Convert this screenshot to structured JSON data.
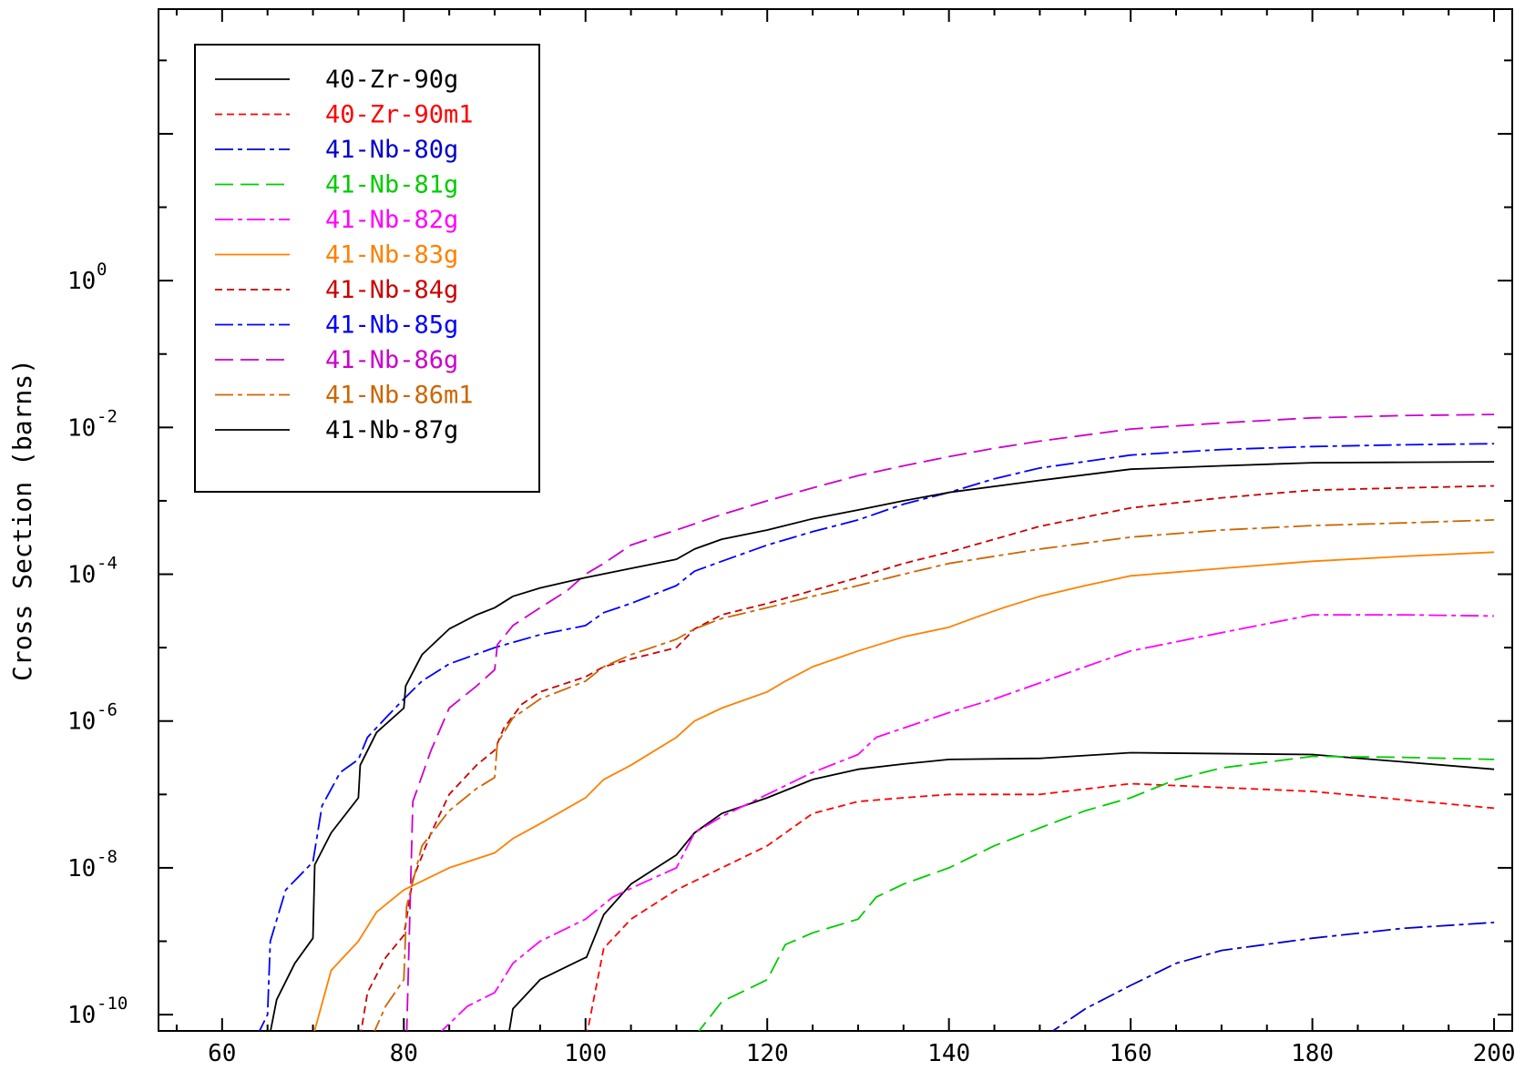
{
  "chart_data": {
    "type": "line",
    "title": "",
    "xlabel": "",
    "ylabel": "Cross Section (barns)",
    "x_scale": "linear",
    "y_scale": "log",
    "xlim": [
      53,
      202
    ],
    "ylim": [
      6e-11,
      5000
    ],
    "x_ticks": [
      60,
      80,
      100,
      120,
      140,
      160,
      180,
      200
    ],
    "y_ticks": [
      {
        "base": "10",
        "exp": "0",
        "value": 1
      },
      {
        "base": "10",
        "exp": "-2",
        "value": 0.01
      },
      {
        "base": "10",
        "exp": "-4",
        "value": 0.0001
      },
      {
        "base": "10",
        "exp": "-6",
        "value": 1e-06
      },
      {
        "base": "10",
        "exp": "-8",
        "value": 1e-08
      },
      {
        "base": "10",
        "exp": "-10",
        "value": 1e-10
      }
    ],
    "grid": false,
    "legend_position": "top-left",
    "series": [
      {
        "name": "40-Zr-90g",
        "color": "#000000",
        "dash": "solid",
        "x": [
          91.5,
          92,
          95,
          100,
          100.1,
          102,
          105,
          110,
          112,
          115,
          120,
          125,
          130,
          135,
          140,
          150,
          160,
          180,
          200
        ],
        "y": [
          5e-11,
          1.2e-10,
          3e-10,
          6e-10,
          6e-10,
          2.3e-09,
          6e-09,
          1.5e-08,
          3e-08,
          5.5e-08,
          9e-08,
          1.6e-07,
          2.2e-07,
          2.6e-07,
          3e-07,
          3.1e-07,
          3.7e-07,
          3.5e-07,
          2.2e-07
        ]
      },
      {
        "name": "40-Zr-90m1",
        "color": "#ff0000",
        "dash": "short",
        "x": [
          100.1,
          102,
          105,
          110,
          115,
          120,
          125,
          130,
          135,
          140,
          150,
          160,
          180,
          200
        ],
        "y": [
          5e-11,
          8e-10,
          2e-09,
          5e-09,
          1e-08,
          2e-08,
          5.5e-08,
          8e-08,
          9e-08,
          1e-07,
          1e-07,
          1.4e-07,
          1.1e-07,
          6.5e-08
        ]
      },
      {
        "name": "41-Nb-80g",
        "color": "#0000cc",
        "dash": "dashdot",
        "x": [
          150.5,
          155,
          160,
          165,
          170,
          180,
          190,
          200
        ],
        "y": [
          5e-11,
          1.2e-10,
          2.5e-10,
          5e-10,
          7.5e-10,
          1.1e-09,
          1.5e-09,
          1.8e-09
        ]
      },
      {
        "name": "41-Nb-81g",
        "color": "#00cc00",
        "dash": "long",
        "x": [
          112,
          115,
          120,
          122,
          125,
          130,
          132,
          135,
          140,
          145,
          150,
          155,
          160,
          165,
          170,
          180,
          190,
          200
        ],
        "y": [
          5e-11,
          1.5e-10,
          3e-10,
          9e-10,
          1.3e-09,
          2e-09,
          4e-09,
          6e-09,
          1e-08,
          2e-08,
          3.5e-08,
          6e-08,
          9e-08,
          1.6e-07,
          2.3e-07,
          3.3e-07,
          3.2e-07,
          3e-07
        ]
      },
      {
        "name": "41-Nb-82g",
        "color": "#ff00ff",
        "dash": "dashdot",
        "x": [
          83.5,
          87,
          90,
          92,
          95,
          100,
          103,
          106,
          110,
          112,
          115,
          120,
          125,
          130,
          132,
          135,
          140,
          145,
          150,
          155,
          160,
          170,
          180,
          190,
          200
        ],
        "y": [
          5e-11,
          1.3e-10,
          2e-10,
          5e-10,
          1e-09,
          2e-09,
          4e-09,
          6e-09,
          1e-08,
          3e-08,
          5e-08,
          1e-07,
          2e-07,
          3.5e-07,
          6e-07,
          8e-07,
          1.3e-06,
          2e-06,
          3.3e-06,
          5.5e-06,
          9e-06,
          1.6e-05,
          2.8e-05,
          2.8e-05,
          2.7e-05
        ]
      },
      {
        "name": "41-Nb-83g",
        "color": "#ff8000",
        "dash": "solid",
        "x": [
          70,
          72,
          75,
          77,
          80,
          85,
          90,
          92,
          95,
          100,
          102,
          105,
          110,
          112,
          115,
          120,
          122,
          125,
          130,
          135,
          140,
          143,
          146,
          150,
          155,
          160,
          170,
          180,
          190,
          200
        ],
        "y": [
          5e-11,
          4e-10,
          1e-09,
          2.5e-09,
          5e-09,
          1e-08,
          1.6e-08,
          2.5e-08,
          4e-08,
          9e-08,
          1.6e-07,
          2.5e-07,
          6e-07,
          1e-06,
          1.5e-06,
          2.5e-06,
          3.5e-06,
          5.5e-06,
          9e-06,
          1.4e-05,
          1.9e-05,
          2.6e-05,
          3.5e-05,
          5e-05,
          7e-05,
          9.5e-05,
          0.00012,
          0.00015,
          0.000175,
          0.0002
        ]
      },
      {
        "name": "41-Nb-84g",
        "color": "#cc0000",
        "dash": "short",
        "x": [
          75.2,
          76,
          78,
          80,
          81,
          83,
          85,
          88,
          90,
          91,
          93,
          95,
          100,
          102,
          105,
          110,
          112,
          115,
          120,
          125,
          130,
          135,
          140,
          150,
          160,
          170,
          180,
          190,
          200
        ],
        "y": [
          5e-11,
          2e-10,
          6e-10,
          1.2e-09,
          7e-09,
          3e-08,
          1e-07,
          2.5e-07,
          4e-07,
          8e-07,
          1.7e-06,
          2.5e-06,
          4e-06,
          5.5e-06,
          7e-06,
          1e-05,
          1.8e-05,
          2.8e-05,
          4e-05,
          6e-05,
          9e-05,
          0.00014,
          0.0002,
          0.00045,
          0.0008,
          0.0011,
          0.0014,
          0.0015,
          0.0016
        ]
      },
      {
        "name": "41-Nb-85g",
        "color": "#0000ff",
        "dash": "dashdot",
        "x": [
          63.8,
          65,
          65.3,
          67,
          70,
          71,
          73,
          75,
          76,
          78,
          80,
          82,
          85,
          90,
          95,
          100,
          102,
          105,
          110,
          112,
          115,
          120,
          125,
          130,
          135,
          140,
          145,
          150,
          160,
          170,
          180,
          190,
          200
        ],
        "y": [
          5e-11,
          1e-10,
          1e-09,
          5e-09,
          1.2e-08,
          7e-08,
          2e-07,
          3e-07,
          6e-07,
          1.1e-06,
          2e-06,
          3.5e-06,
          6e-06,
          1e-05,
          1.5e-05,
          2e-05,
          3e-05,
          4e-05,
          7e-05,
          0.00011,
          0.00015,
          0.00025,
          0.00038,
          0.00055,
          0.0009,
          0.0013,
          0.002,
          0.0028,
          0.0042,
          0.005,
          0.0055,
          0.0058,
          0.006
        ]
      },
      {
        "name": "41-Nb-86g",
        "color": "#cc00cc",
        "dash": "long",
        "x": [
          80.3,
          81,
          83,
          85,
          88,
          90,
          90.3,
          92,
          95,
          98,
          100,
          102,
          105,
          110,
          115,
          120,
          125,
          130,
          135,
          140,
          145,
          150,
          160,
          170,
          180,
          190,
          200
        ],
        "y": [
          5e-11,
          8e-08,
          4e-07,
          1.5e-06,
          3e-06,
          5e-06,
          1.1e-05,
          2e-05,
          3.5e-05,
          6e-05,
          0.0001,
          0.00014,
          0.00025,
          0.0004,
          0.00065,
          0.001,
          0.0015,
          0.0022,
          0.003,
          0.004,
          0.0052,
          0.0065,
          0.0095,
          0.0115,
          0.0135,
          0.0145,
          0.015
        ]
      },
      {
        "name": "41-Nb-86m1",
        "color": "#cc6600",
        "dash": "dashdot",
        "x": [
          76.5,
          78,
          80,
          80.3,
          82,
          85,
          88,
          90,
          90.3,
          92,
          95,
          100,
          102,
          105,
          110,
          112,
          115,
          120,
          125,
          130,
          135,
          140,
          150,
          160,
          170,
          180,
          190,
          200
        ],
        "y": [
          5e-11,
          1.3e-10,
          3e-10,
          3e-09,
          2e-08,
          6e-08,
          1.2e-07,
          1.7e-07,
          5e-07,
          1.1e-06,
          2e-06,
          3.5e-06,
          5.5e-06,
          8e-06,
          1.3e-05,
          1.8e-05,
          2.5e-05,
          3.5e-05,
          5e-05,
          7e-05,
          0.0001,
          0.00014,
          0.00022,
          0.00032,
          0.0004,
          0.00046,
          0.0005,
          0.00055
        ]
      },
      {
        "name": "41-Nb-87g",
        "color": "#000000",
        "dash": "solid",
        "x": [
          65.2,
          66,
          68,
          70,
          70.2,
          72,
          75,
          75.2,
          77,
          80,
          80.2,
          82,
          85,
          88,
          90,
          92,
          95,
          100,
          105,
          110,
          112,
          115,
          120,
          125,
          130,
          135,
          140,
          150,
          160,
          170,
          180,
          190,
          200
        ],
        "y": [
          5e-11,
          1.6e-10,
          5e-10,
          1.1e-09,
          1.1e-08,
          3e-08,
          9e-08,
          2.5e-07,
          7e-07,
          1.5e-06,
          3e-06,
          8e-06,
          1.8e-05,
          2.8e-05,
          3.5e-05,
          5e-05,
          6.5e-05,
          9e-05,
          0.00012,
          0.00016,
          0.00022,
          0.0003,
          0.0004,
          0.00057,
          0.00075,
          0.001,
          0.0013,
          0.0019,
          0.0027,
          0.003,
          0.0033,
          0.00335,
          0.0034
        ]
      }
    ]
  }
}
